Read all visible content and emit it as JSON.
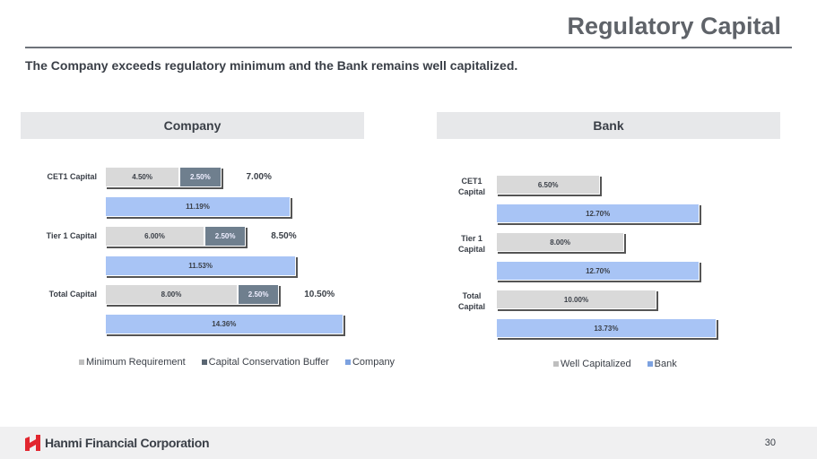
{
  "header": {
    "title": "Regulatory Capital",
    "subtitle": "The Company exceeds regulatory minimum and the Bank remains well capitalized."
  },
  "footer": {
    "company": "Hanmi Financial Corporation",
    "page": "30"
  },
  "colors": {
    "minimum": "#d9d9d9",
    "buffer": "#6f7f8e",
    "company": "#a8c4f5",
    "well": "#d9d9d9",
    "bank": "#a8c4f5"
  },
  "chart_data": [
    {
      "type": "bar",
      "orientation": "horizontal",
      "title": "Company",
      "categories": [
        "CET1 Capital",
        "Tier 1 Capital",
        "Total Capital"
      ],
      "series": [
        {
          "name": "Minimum Requirement",
          "values": [
            4.5,
            6.0,
            8.0
          ],
          "labels": [
            "4.50%",
            "6.00%",
            "8.00%"
          ],
          "stack": "req"
        },
        {
          "name": "Capital Conservation Buffer",
          "values": [
            2.5,
            2.5,
            2.5
          ],
          "labels": [
            "2.50%",
            "2.50%",
            "2.50%"
          ],
          "stack": "req"
        },
        {
          "name": "Company",
          "values": [
            11.19,
            11.53,
            14.36
          ],
          "labels": [
            "11.19%",
            "11.53%",
            "14.36%"
          ]
        }
      ],
      "totals": [
        "7.00%",
        "8.50%",
        "10.50%"
      ],
      "legend": "bottom"
    },
    {
      "type": "bar",
      "orientation": "horizontal",
      "title": "Bank",
      "categories": [
        "CET1\nCapital",
        "Tier 1\nCapital",
        "Total\nCapital"
      ],
      "series": [
        {
          "name": "Well Capitalized",
          "values": [
            6.5,
            8.0,
            10.0
          ],
          "labels": [
            "6.50%",
            "8.00%",
            "10.00%"
          ]
        },
        {
          "name": "Bank",
          "values": [
            12.7,
            12.7,
            13.73
          ],
          "labels": [
            "12.70%",
            "12.70%",
            "13.73%"
          ]
        }
      ],
      "legend": "bottom"
    }
  ]
}
